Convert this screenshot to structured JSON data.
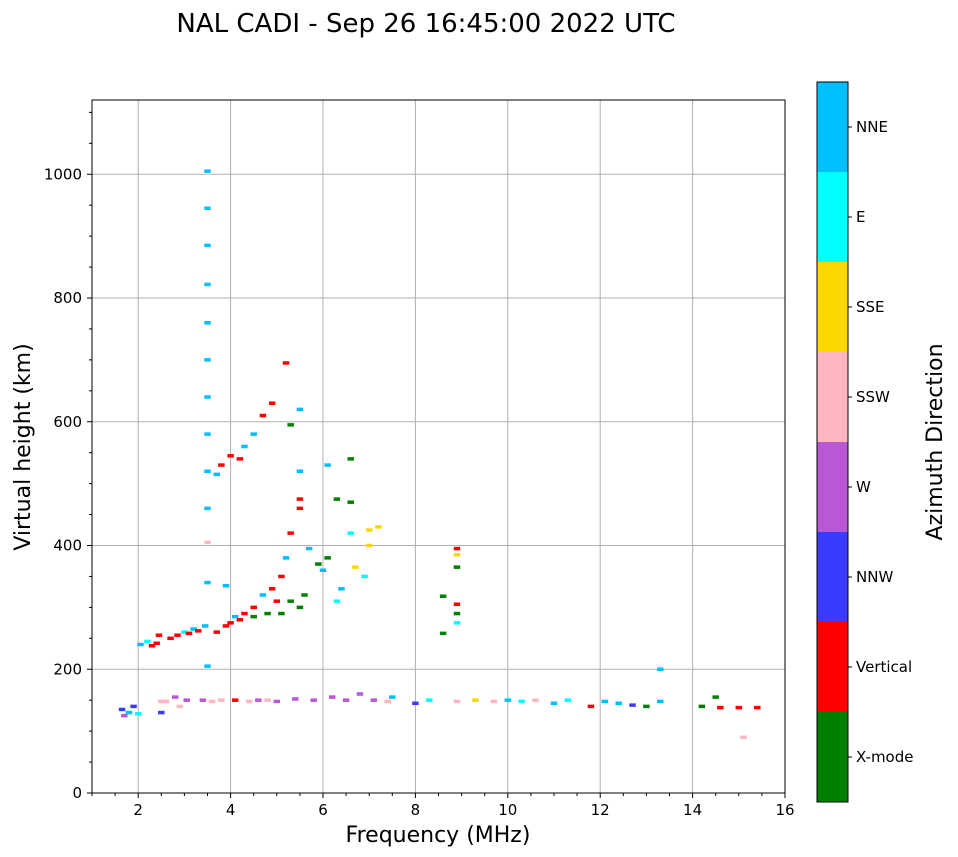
{
  "chart_data": {
    "type": "scatter",
    "title": "NAL CADI - Sep 26 16:45:00 2022 UTC",
    "xlabel": "Frequency (MHz)",
    "ylabel": "Virtual height (km)",
    "xlim": [
      1,
      16
    ],
    "ylim": [
      0,
      1120
    ],
    "xticks": [
      2,
      4,
      6,
      8,
      10,
      12,
      14,
      16
    ],
    "yticks": [
      0,
      200,
      400,
      600,
      800,
      1000
    ],
    "grid": true,
    "colorbar": {
      "title": "Azimuth Direction",
      "categories": [
        {
          "label": "X-mode",
          "color": "#008000"
        },
        {
          "label": "Vertical",
          "color": "#ff0000"
        },
        {
          "label": "NNW",
          "color": "#3b3bff"
        },
        {
          "label": "W",
          "color": "#b957d4"
        },
        {
          "label": "SSW",
          "color": "#ffb6c1"
        },
        {
          "label": "SSE",
          "color": "#ffd700"
        },
        {
          "label": "E",
          "color": "#00ffff"
        },
        {
          "label": "NNE",
          "color": "#00bfff"
        }
      ]
    },
    "points": [
      [
        1.65,
        135,
        "NNW"
      ],
      [
        1.7,
        125,
        "W"
      ],
      [
        1.8,
        130,
        "NNE"
      ],
      [
        1.9,
        140,
        "NNW"
      ],
      [
        2.0,
        128,
        "E"
      ],
      [
        2.05,
        240,
        "NNE"
      ],
      [
        2.2,
        245,
        "E"
      ],
      [
        2.3,
        238,
        "Vertical"
      ],
      [
        2.4,
        242,
        "Vertical"
      ],
      [
        2.45,
        255,
        "Vertical"
      ],
      [
        2.5,
        148,
        "SSW"
      ],
      [
        2.5,
        130,
        "NNW"
      ],
      [
        2.6,
        148,
        "SSW"
      ],
      [
        2.7,
        250,
        "Vertical"
      ],
      [
        2.8,
        155,
        "W"
      ],
      [
        2.85,
        255,
        "Vertical"
      ],
      [
        2.9,
        140,
        "SSW"
      ],
      [
        3.0,
        260,
        "E"
      ],
      [
        3.05,
        150,
        "W"
      ],
      [
        3.1,
        258,
        "Vertical"
      ],
      [
        3.2,
        265,
        "NNE"
      ],
      [
        3.3,
        262,
        "Vertical"
      ],
      [
        3.4,
        150,
        "W"
      ],
      [
        3.45,
        270,
        "NNE"
      ],
      [
        3.5,
        1005,
        "NNE"
      ],
      [
        3.5,
        945,
        "NNE"
      ],
      [
        3.5,
        885,
        "NNE"
      ],
      [
        3.5,
        822,
        "NNE"
      ],
      [
        3.5,
        760,
        "NNE"
      ],
      [
        3.5,
        700,
        "NNE"
      ],
      [
        3.5,
        640,
        "NNE"
      ],
      [
        3.5,
        580,
        "NNE"
      ],
      [
        3.5,
        520,
        "NNE"
      ],
      [
        3.5,
        460,
        "NNE"
      ],
      [
        3.5,
        405,
        "SSW"
      ],
      [
        3.5,
        340,
        "NNE"
      ],
      [
        3.5,
        205,
        "NNE"
      ],
      [
        3.6,
        148,
        "SSW"
      ],
      [
        3.7,
        260,
        "Vertical"
      ],
      [
        3.7,
        515,
        "NNE"
      ],
      [
        3.8,
        530,
        "Vertical"
      ],
      [
        3.8,
        150,
        "SSW"
      ],
      [
        3.9,
        270,
        "Vertical"
      ],
      [
        3.9,
        335,
        "NNE"
      ],
      [
        4.0,
        545,
        "Vertical"
      ],
      [
        4.0,
        275,
        "Vertical"
      ],
      [
        4.1,
        150,
        "Vertical"
      ],
      [
        4.1,
        285,
        "NNE"
      ],
      [
        4.2,
        540,
        "Vertical"
      ],
      [
        4.2,
        280,
        "Vertical"
      ],
      [
        4.3,
        560,
        "NNE"
      ],
      [
        4.3,
        290,
        "Vertical"
      ],
      [
        4.4,
        148,
        "SSW"
      ],
      [
        4.5,
        580,
        "NNE"
      ],
      [
        4.5,
        285,
        "X-mode"
      ],
      [
        4.5,
        300,
        "Vertical"
      ],
      [
        4.6,
        150,
        "W"
      ],
      [
        4.7,
        610,
        "Vertical"
      ],
      [
        4.7,
        320,
        "NNE"
      ],
      [
        4.8,
        290,
        "X-mode"
      ],
      [
        4.8,
        150,
        "SSW"
      ],
      [
        4.9,
        630,
        "Vertical"
      ],
      [
        4.9,
        330,
        "Vertical"
      ],
      [
        5.0,
        310,
        "Vertical"
      ],
      [
        5.0,
        148,
        "W"
      ],
      [
        5.1,
        350,
        "Vertical"
      ],
      [
        5.1,
        290,
        "X-mode"
      ],
      [
        5.2,
        695,
        "Vertical"
      ],
      [
        5.2,
        380,
        "NNE"
      ],
      [
        5.3,
        595,
        "X-mode"
      ],
      [
        5.3,
        420,
        "Vertical"
      ],
      [
        5.3,
        310,
        "X-mode"
      ],
      [
        5.4,
        152,
        "W"
      ],
      [
        5.5,
        620,
        "NNE"
      ],
      [
        5.5,
        520,
        "NNE"
      ],
      [
        5.5,
        475,
        "Vertical"
      ],
      [
        5.5,
        460,
        "Vertical"
      ],
      [
        5.5,
        300,
        "X-mode"
      ],
      [
        5.6,
        320,
        "X-mode"
      ],
      [
        5.7,
        395,
        "NNE"
      ],
      [
        5.8,
        150,
        "W"
      ],
      [
        5.9,
        370,
        "X-mode"
      ],
      [
        6.0,
        360,
        "NNE"
      ],
      [
        6.1,
        380,
        "X-mode"
      ],
      [
        6.1,
        530,
        "NNE"
      ],
      [
        6.2,
        155,
        "W"
      ],
      [
        6.3,
        475,
        "X-mode"
      ],
      [
        6.3,
        310,
        "E"
      ],
      [
        6.4,
        330,
        "NNE"
      ],
      [
        6.5,
        150,
        "W"
      ],
      [
        6.6,
        470,
        "X-mode"
      ],
      [
        6.6,
        420,
        "E"
      ],
      [
        6.6,
        540,
        "X-mode"
      ],
      [
        6.7,
        365,
        "SSE"
      ],
      [
        6.8,
        160,
        "W"
      ],
      [
        6.9,
        350,
        "E"
      ],
      [
        7.0,
        425,
        "SSE"
      ],
      [
        7.0,
        400,
        "SSE"
      ],
      [
        7.1,
        150,
        "W"
      ],
      [
        7.2,
        430,
        "SSE"
      ],
      [
        7.4,
        148,
        "SSW"
      ],
      [
        7.5,
        155,
        "NNE"
      ],
      [
        8.0,
        145,
        "NNW"
      ],
      [
        8.3,
        150,
        "E"
      ],
      [
        8.6,
        318,
        "X-mode"
      ],
      [
        8.6,
        258,
        "X-mode"
      ],
      [
        8.9,
        395,
        "Vertical"
      ],
      [
        8.9,
        385,
        "SSE"
      ],
      [
        8.9,
        365,
        "X-mode"
      ],
      [
        8.9,
        305,
        "Vertical"
      ],
      [
        8.9,
        290,
        "X-mode"
      ],
      [
        8.9,
        275,
        "E"
      ],
      [
        8.9,
        148,
        "SSW"
      ],
      [
        9.3,
        150,
        "SSE"
      ],
      [
        9.7,
        148,
        "SSW"
      ],
      [
        10.0,
        150,
        "NNE"
      ],
      [
        10.3,
        148,
        "E"
      ],
      [
        10.6,
        150,
        "SSW"
      ],
      [
        11.0,
        145,
        "NNE"
      ],
      [
        11.3,
        150,
        "E"
      ],
      [
        11.8,
        140,
        "Vertical"
      ],
      [
        12.1,
        148,
        "NNE"
      ],
      [
        12.4,
        145,
        "NNE"
      ],
      [
        12.7,
        142,
        "NNW"
      ],
      [
        13.0,
        140,
        "X-mode"
      ],
      [
        13.3,
        148,
        "NNE"
      ],
      [
        13.3,
        200,
        "NNE"
      ],
      [
        14.2,
        140,
        "X-mode"
      ],
      [
        14.5,
        155,
        "X-mode"
      ],
      [
        14.6,
        138,
        "Vertical"
      ],
      [
        15.0,
        138,
        "Vertical"
      ],
      [
        15.1,
        90,
        "SSW"
      ],
      [
        15.4,
        138,
        "Vertical"
      ]
    ]
  }
}
